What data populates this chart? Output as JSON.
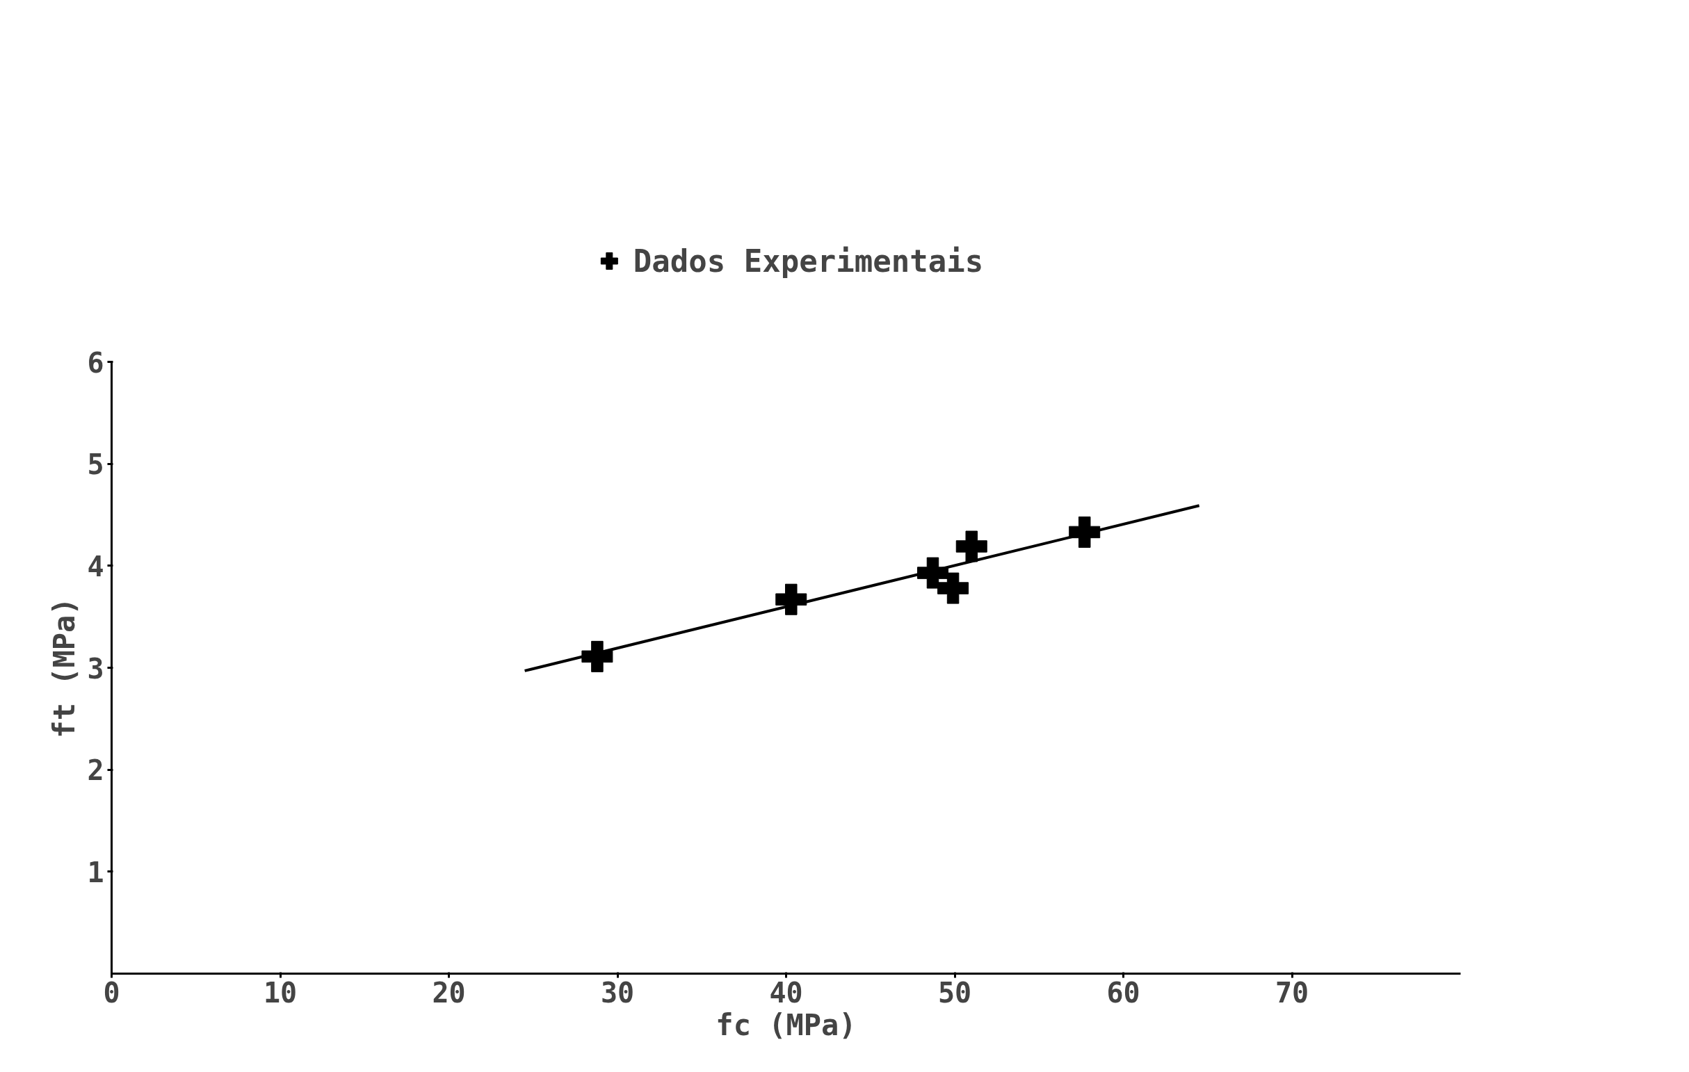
{
  "chart_data": {
    "type": "scatter",
    "xlabel": "fc (MPa)",
    "ylabel": "ft (MPa)",
    "xlim": [
      0,
      80
    ],
    "ylim": [
      0,
      6
    ],
    "xticks": [
      0,
      10,
      20,
      30,
      40,
      50,
      60,
      70
    ],
    "yticks": [
      1,
      2,
      3,
      4,
      5,
      6
    ],
    "grid": false,
    "legend": "top",
    "marker": "cross",
    "series": [
      {
        "name": "Dados Experimentais",
        "color": "#000000",
        "x": [
          28.8,
          40.3,
          48.7,
          49.9,
          51.0,
          57.7
        ],
        "values": [
          3.11,
          3.67,
          3.93,
          3.78,
          4.19,
          4.33
        ]
      },
      {
        "type": "line",
        "color": "#000000",
        "line_style": "solid",
        "marker": "none",
        "x": [
          24.5,
          64.5
        ],
        "values": [
          2.97,
          4.59
        ]
      }
    ]
  }
}
